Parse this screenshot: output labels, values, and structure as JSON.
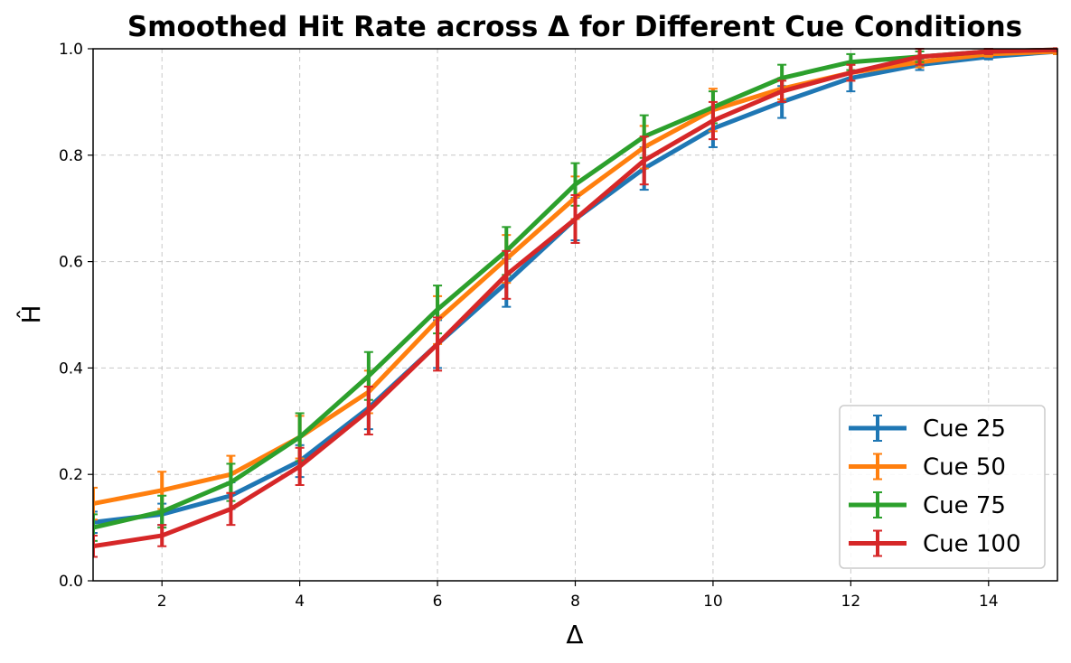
{
  "chart_data": {
    "type": "line",
    "title": "Smoothed Hit Rate across Δ for Different Cue Conditions",
    "xlabel": "Δ",
    "ylabel": "Ĥ",
    "xlim": [
      1,
      15
    ],
    "ylim": [
      0,
      1
    ],
    "xticks": [
      "2",
      "4",
      "6",
      "8",
      "10",
      "12",
      "14"
    ],
    "yticks": [
      "0.0",
      "0.2",
      "0.4",
      "0.6",
      "0.8",
      "1.0"
    ],
    "grid": true,
    "legend_position": "bottom-right",
    "x": [
      1,
      2,
      3,
      4,
      5,
      6,
      7,
      8,
      9,
      10,
      11,
      12,
      13,
      14,
      15
    ],
    "series": [
      {
        "name": "Cue 25",
        "color": "#1f77b4",
        "values": [
          0.11,
          0.125,
          0.16,
          0.225,
          0.325,
          0.445,
          0.56,
          0.68,
          0.775,
          0.85,
          0.9,
          0.945,
          0.97,
          0.985,
          0.995
        ],
        "errors": [
          0.02,
          0.02,
          0.025,
          0.03,
          0.04,
          0.045,
          0.045,
          0.04,
          0.04,
          0.035,
          0.03,
          0.025,
          0.01,
          0.005,
          0.005
        ]
      },
      {
        "name": "Cue 50",
        "color": "#ff7f0e",
        "values": [
          0.145,
          0.17,
          0.2,
          0.27,
          0.355,
          0.49,
          0.605,
          0.72,
          0.815,
          0.885,
          0.925,
          0.955,
          0.975,
          0.99,
          0.995
        ],
        "errors": [
          0.03,
          0.035,
          0.035,
          0.04,
          0.04,
          0.045,
          0.045,
          0.04,
          0.04,
          0.04,
          0.02,
          0.015,
          0.01,
          0.005,
          0.005
        ]
      },
      {
        "name": "Cue 75",
        "color": "#2ca02c",
        "values": [
          0.1,
          0.13,
          0.185,
          0.27,
          0.385,
          0.51,
          0.62,
          0.745,
          0.835,
          0.89,
          0.945,
          0.975,
          0.985,
          0.995,
          0.998
        ],
        "errors": [
          0.025,
          0.03,
          0.035,
          0.045,
          0.045,
          0.045,
          0.045,
          0.04,
          0.04,
          0.03,
          0.025,
          0.015,
          0.01,
          0.005,
          0.003
        ]
      },
      {
        "name": "Cue 100",
        "color": "#d62728",
        "values": [
          0.065,
          0.085,
          0.135,
          0.215,
          0.32,
          0.445,
          0.575,
          0.68,
          0.79,
          0.865,
          0.92,
          0.955,
          0.985,
          0.995,
          0.998
        ],
        "errors": [
          0.02,
          0.02,
          0.03,
          0.035,
          0.045,
          0.05,
          0.045,
          0.045,
          0.045,
          0.035,
          0.02,
          0.015,
          0.015,
          0.005,
          0.003
        ]
      }
    ]
  }
}
